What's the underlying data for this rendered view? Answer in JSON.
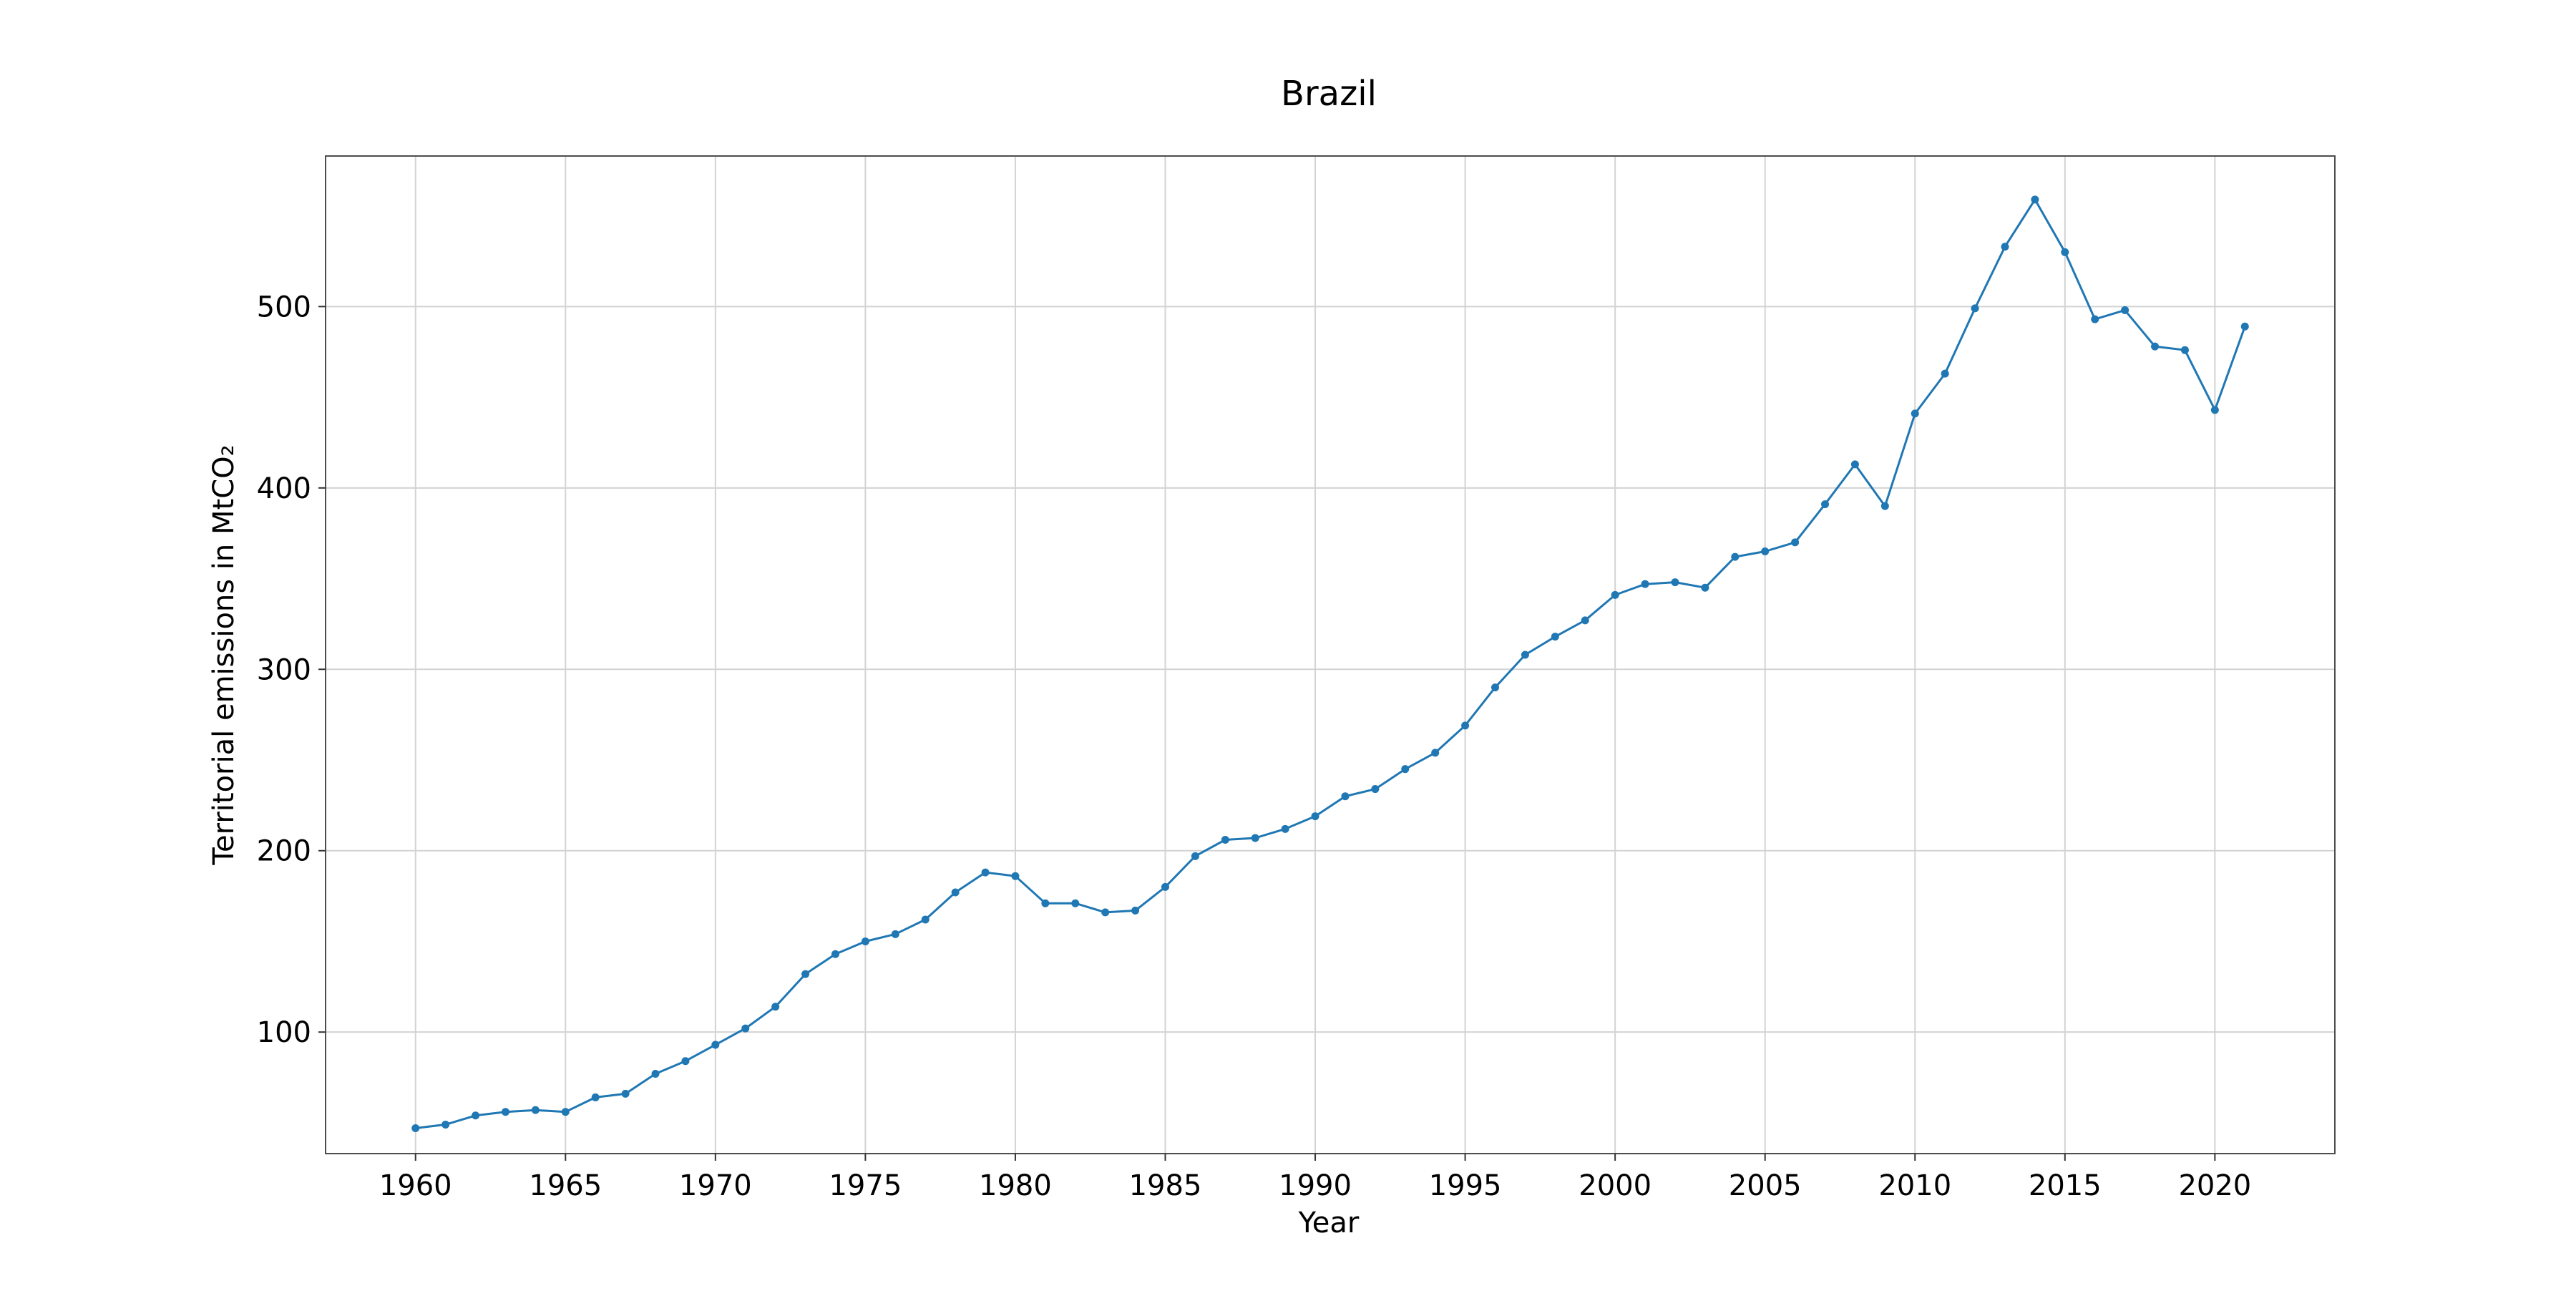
{
  "chart_data": {
    "type": "line",
    "title": "Brazil",
    "xlabel": "Year",
    "ylabel": "Territorial emissions in MtCO₂",
    "xlim": [
      1957,
      2024
    ],
    "ylim": [
      33,
      583
    ],
    "x_ticks": [
      1960,
      1965,
      1970,
      1975,
      1980,
      1985,
      1990,
      1995,
      2000,
      2005,
      2010,
      2015,
      2020
    ],
    "y_ticks": [
      100,
      200,
      300,
      400,
      500
    ],
    "grid": true,
    "legend": "none",
    "series": [
      {
        "color": "#1f77b4",
        "marker": "circle",
        "x": [
          1960,
          1961,
          1962,
          1963,
          1964,
          1965,
          1966,
          1967,
          1968,
          1969,
          1970,
          1971,
          1972,
          1973,
          1974,
          1975,
          1976,
          1977,
          1978,
          1979,
          1980,
          1981,
          1982,
          1983,
          1984,
          1985,
          1986,
          1987,
          1988,
          1989,
          1990,
          1991,
          1992,
          1993,
          1994,
          1995,
          1996,
          1997,
          1998,
          1999,
          2000,
          2001,
          2002,
          2003,
          2004,
          2005,
          2006,
          2007,
          2008,
          2009,
          2010,
          2011,
          2012,
          2013,
          2014,
          2015,
          2016,
          2017,
          2018,
          2019,
          2020,
          2021
        ],
        "values": [
          47,
          49,
          54,
          56,
          57,
          56,
          64,
          66,
          77,
          84,
          93,
          102,
          114,
          132,
          143,
          150,
          154,
          162,
          177,
          188,
          186,
          171,
          171,
          166,
          167,
          180,
          197,
          206,
          207,
          212,
          219,
          230,
          234,
          245,
          254,
          269,
          290,
          308,
          318,
          327,
          341,
          347,
          348,
          345,
          362,
          365,
          370,
          391,
          413,
          390,
          441,
          463,
          499,
          533,
          559,
          530,
          493,
          498,
          478,
          476,
          443,
          489
        ]
      }
    ]
  }
}
